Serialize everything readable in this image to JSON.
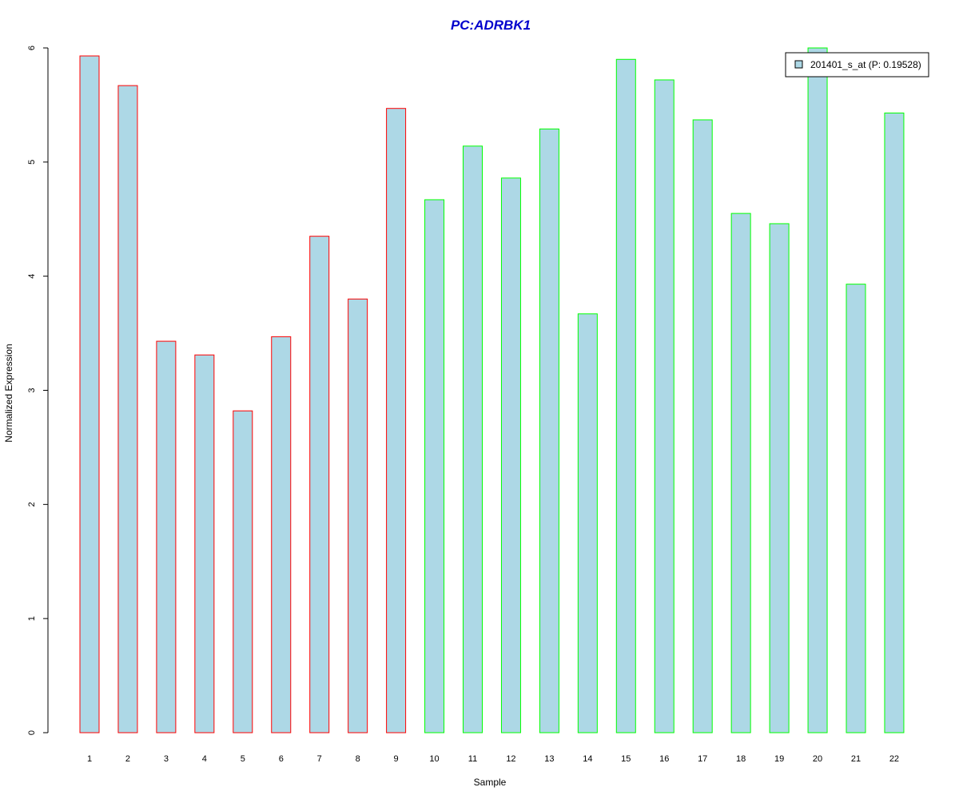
{
  "chart_data": {
    "type": "bar",
    "title": "PC:ADRBK1",
    "title_color": "#0000cc",
    "xlabel": "Sample",
    "ylabel": "Normalized Expression",
    "ylim": [
      0,
      6
    ],
    "yticks": [
      0,
      1,
      2,
      3,
      4,
      5,
      6
    ],
    "categories": [
      "1",
      "2",
      "3",
      "4",
      "5",
      "6",
      "7",
      "8",
      "9",
      "10",
      "11",
      "12",
      "13",
      "14",
      "15",
      "16",
      "17",
      "18",
      "19",
      "20",
      "21",
      "22"
    ],
    "series": [
      {
        "name": "201401_s_at (P: 0.19528)",
        "fill": "#add8e6",
        "values": [
          5.93,
          5.67,
          3.43,
          3.31,
          2.82,
          3.47,
          4.35,
          3.8,
          5.47,
          4.67,
          5.14,
          4.86,
          5.29,
          3.67,
          5.9,
          5.72,
          5.37,
          4.55,
          4.46,
          6.0,
          3.93,
          5.43
        ]
      }
    ],
    "bar_outline_colors": [
      "#ff0000",
      "#ff0000",
      "#ff0000",
      "#ff0000",
      "#ff0000",
      "#ff0000",
      "#ff0000",
      "#ff0000",
      "#ff0000",
      "#00ff00",
      "#00ff00",
      "#00ff00",
      "#00ff00",
      "#00ff00",
      "#00ff00",
      "#00ff00",
      "#00ff00",
      "#00ff00",
      "#00ff00",
      "#00ff00",
      "#00ff00",
      "#00ff00"
    ],
    "grid": false,
    "legend_position": "top-right"
  }
}
